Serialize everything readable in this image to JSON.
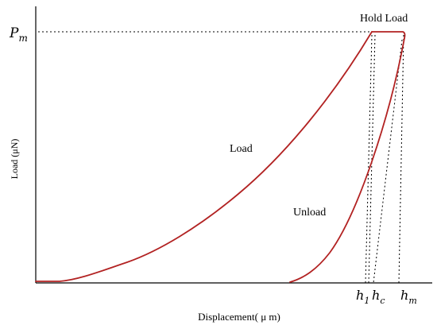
{
  "diagram": {
    "axes": {
      "ylabel": "Load (μN)",
      "xlabel": "Displacement( μ m)"
    },
    "labels": {
      "pm": "P",
      "pm_sub": "m",
      "hold_load": "Hold Load",
      "load_curve": "Load",
      "unload_curve": "Unload",
      "h1": "h",
      "h1_sub": "1",
      "hc": "h",
      "hc_sub": "c",
      "hm": "h",
      "hm_sub": "m"
    },
    "colors": {
      "curve": "#b22222",
      "axis": "#000000",
      "guide": "#000000"
    }
  }
}
